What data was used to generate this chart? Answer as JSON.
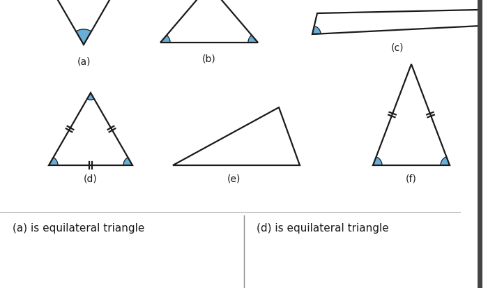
{
  "bg_color": "#ffffff",
  "blue_fill": "#6aaed6",
  "line_color": "#1a1a1a",
  "label_fontsize": 10,
  "text_fontsize": 11,
  "labels": [
    "(a)",
    "(b)",
    "(c)",
    "(d)",
    "(e)",
    "(f)"
  ],
  "bottom_text_left": "(a) is equilateral triangle",
  "bottom_text_right": "(d) is equilateral triangle",
  "fig_width": 7.0,
  "fig_height": 4.14,
  "dpi": 100
}
